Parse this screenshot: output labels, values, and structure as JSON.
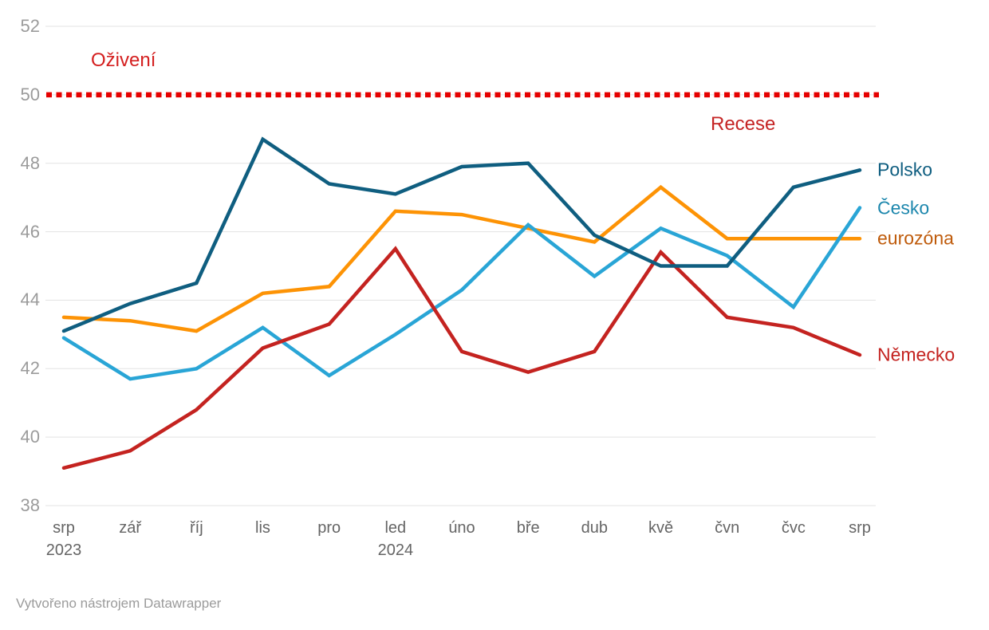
{
  "attribution": "Vytvořeno nástrojem Datawrapper",
  "chart_data": {
    "type": "line",
    "title": "",
    "xlabel": "",
    "ylabel": "",
    "categories": [
      "srp",
      "zář",
      "říj",
      "lis",
      "pro",
      "led",
      "úno",
      "bře",
      "dub",
      "kvě",
      "čvn",
      "čvc",
      "srp"
    ],
    "category_sublabels": [
      "2023",
      "",
      "",
      "",
      "",
      "2024",
      "",
      "",
      "",
      "",
      "",
      "",
      ""
    ],
    "series": [
      {
        "name": "Polsko",
        "color": "#0f5e80",
        "label_color": "#0f5e80",
        "values": [
          43.1,
          43.9,
          44.5,
          48.7,
          47.4,
          47.1,
          47.9,
          48.0,
          45.9,
          45.0,
          45.0,
          47.3,
          47.8
        ]
      },
      {
        "name": "Česko",
        "color": "#29a5d6",
        "label_color": "#1d87ad",
        "values": [
          42.9,
          41.7,
          42.0,
          43.2,
          41.8,
          43.0,
          44.3,
          46.2,
          44.7,
          46.1,
          45.3,
          43.8,
          46.7
        ]
      },
      {
        "name": "eurozóna",
        "color": "#fd9305",
        "label_color": "#bf5b0b",
        "values": [
          43.5,
          43.4,
          43.1,
          44.2,
          44.4,
          46.6,
          46.5,
          46.1,
          45.7,
          47.3,
          45.8,
          45.8,
          45.8
        ]
      },
      {
        "name": "Německo",
        "color": "#c42320",
        "label_color": "#c42320",
        "values": [
          39.1,
          39.6,
          40.8,
          42.6,
          43.3,
          45.5,
          42.5,
          41.9,
          42.5,
          45.4,
          43.5,
          43.2,
          42.4
        ]
      }
    ],
    "draw_order": [
      "eurozóna",
      "Česko",
      "Německo",
      "Polsko"
    ],
    "yticks": [
      52,
      50,
      48,
      46,
      44,
      42,
      40,
      38
    ],
    "ylim": [
      38,
      52
    ],
    "grid": true,
    "grid_color": "#e3e3e3",
    "legend_position": "right-of-line-ends",
    "reference_line": {
      "value": 50,
      "color": "#e60000",
      "style": "dotted",
      "label_above": "Oživení",
      "label_below": "Recese"
    }
  }
}
